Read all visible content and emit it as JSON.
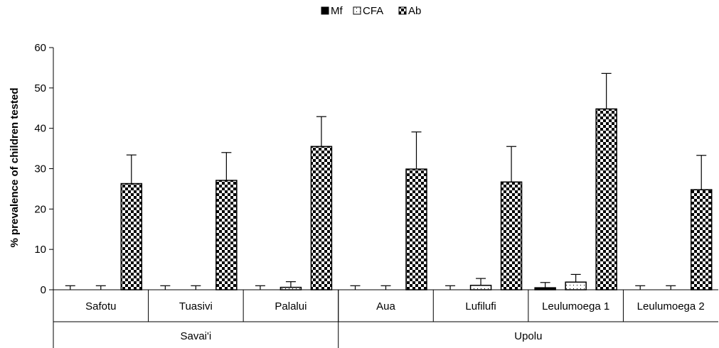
{
  "chart_data": {
    "type": "bar",
    "ylabel": "% prevalence of children tested",
    "ylim": [
      0,
      60
    ],
    "yticks": [
      0,
      10,
      20,
      30,
      40,
      50,
      60
    ],
    "grid": false,
    "legend_position": "top-center",
    "categories": [
      "Safotu",
      "Tuasivi",
      "Palalui",
      "Aua",
      "Lufilufi",
      "Leulumoega 1",
      "Leulumoega 2"
    ],
    "groups": [
      {
        "label": "Savai'i",
        "categories": [
          "Safotu",
          "Tuasivi",
          "Palalui"
        ]
      },
      {
        "label": "Upolu",
        "categories": [
          "Aua",
          "Lufilufi",
          "Leulumoega 1",
          "Leulumoega 2"
        ]
      }
    ],
    "series": [
      {
        "name": "Mf",
        "pattern": "solid",
        "values": [
          0,
          0,
          0,
          0,
          0,
          0.5,
          0
        ],
        "error": [
          1,
          1,
          1,
          1,
          1,
          1.3,
          1
        ]
      },
      {
        "name": "CFA",
        "pattern": "dotted",
        "values": [
          0,
          0,
          0.6,
          0,
          1.1,
          1.9,
          0
        ],
        "error": [
          1,
          1,
          1.4,
          1,
          1.7,
          1.9,
          1
        ]
      },
      {
        "name": "Ab",
        "pattern": "checker",
        "values": [
          26.3,
          27.1,
          35.5,
          29.9,
          26.7,
          44.8,
          24.8
        ],
        "error": [
          7.1,
          6.9,
          7.4,
          9.2,
          8.8,
          8.8,
          8.5
        ]
      }
    ]
  }
}
